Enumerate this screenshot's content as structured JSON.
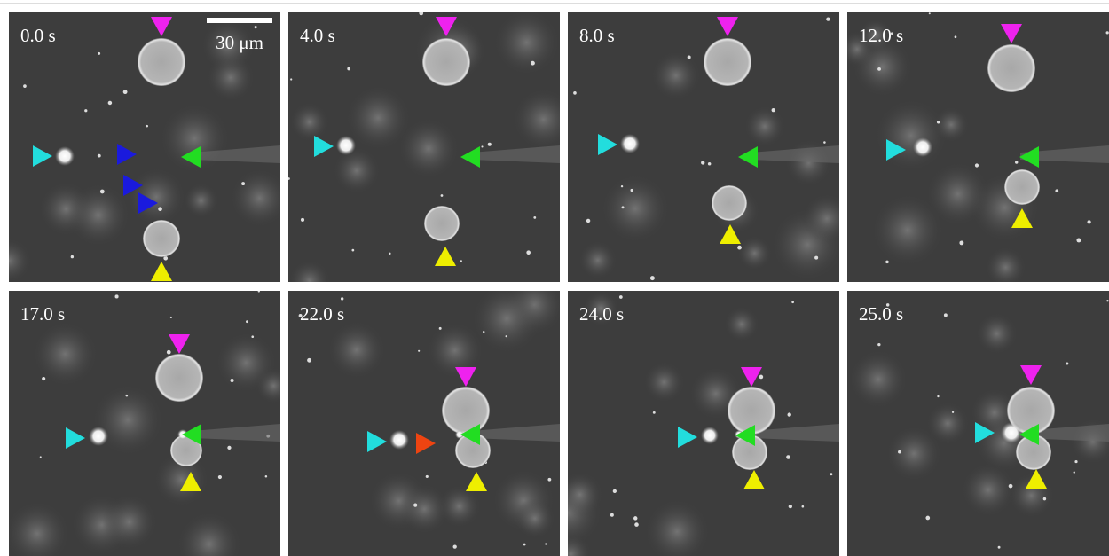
{
  "panels": [
    {
      "time": "0.0 s"
    },
    {
      "time": "4.0 s"
    },
    {
      "time": "8.0 s"
    },
    {
      "time": "12.0 s"
    },
    {
      "time": "17.0 s"
    },
    {
      "time": "22.0 s"
    },
    {
      "time": "24.0 s"
    },
    {
      "time": "25.0 s"
    }
  ],
  "scale_bar": {
    "label": "30 μm"
  }
}
